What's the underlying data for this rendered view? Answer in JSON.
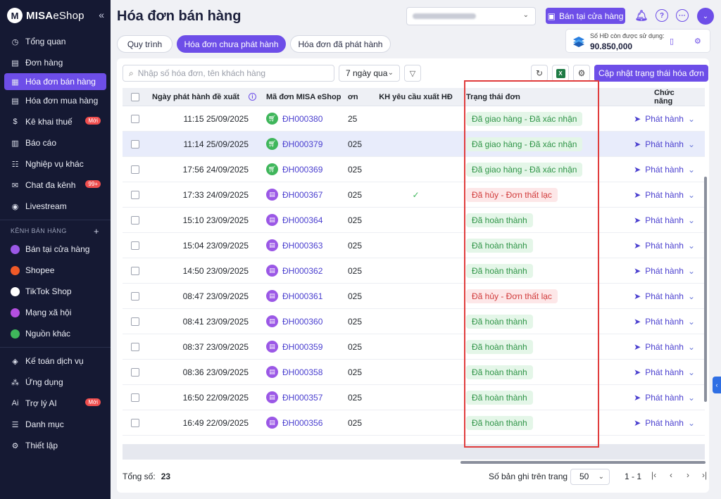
{
  "brand": {
    "logo_letter": "M",
    "name_bold": "MISA",
    "name_light": "eShop"
  },
  "sidebar": {
    "items": [
      {
        "label": "Tổng quan",
        "icon": "gauge-icon",
        "glyph": "◷"
      },
      {
        "label": "Đơn hàng",
        "icon": "order-icon",
        "glyph": "▤"
      },
      {
        "label": "Hóa đơn bán hàng",
        "icon": "invoice-icon",
        "glyph": "▦"
      },
      {
        "label": "Hóa đơn mua hàng",
        "icon": "receipt-icon",
        "glyph": "▤"
      },
      {
        "label": "Kê khai thuế",
        "icon": "tax-icon",
        "glyph": "$",
        "badge": "Mới"
      },
      {
        "label": "Báo cáo",
        "icon": "chart-icon",
        "glyph": "▥"
      },
      {
        "label": "Nghiệp vụ khác",
        "icon": "grid-icon",
        "glyph": "☷"
      },
      {
        "label": "Chat đa kênh",
        "icon": "chat-icon",
        "glyph": "✉",
        "badge": "99+"
      },
      {
        "label": "Livestream",
        "icon": "broadcast-icon",
        "glyph": "◉"
      }
    ],
    "section_title": "KÊNH BÁN HÀNG",
    "channels": [
      {
        "label": "Bán tại cửa hàng",
        "color": "#9b58e6"
      },
      {
        "label": "Shopee",
        "color": "#f05a28"
      },
      {
        "label": "TikTok Shop",
        "color": "#ffffff"
      },
      {
        "label": "Mạng xã hội",
        "color": "#b44fe0"
      },
      {
        "label": "Nguồn khác",
        "color": "#3fb65b"
      }
    ],
    "bottom": [
      {
        "label": "Kế toán dịch vụ",
        "icon": "accounting-icon",
        "glyph": "◈"
      },
      {
        "label": "Ứng dụng",
        "icon": "apps-icon",
        "glyph": "⁂"
      },
      {
        "label": "Trợ lý AI",
        "icon": "ai-icon",
        "glyph": "Ai",
        "badge": "Mới"
      },
      {
        "label": "Danh mục",
        "icon": "list-icon",
        "glyph": "☰"
      },
      {
        "label": "Thiết lập",
        "icon": "settings-icon",
        "glyph": "⚙"
      }
    ]
  },
  "header": {
    "title": "Hóa đơn bán hàng",
    "store_button": "Bán tại cửa hàng",
    "tabs": [
      "Quy trình",
      "Hóa đơn chưa phát hành",
      "Hóa đơn đã phát hành"
    ],
    "quota_label": "Số HĐ còn được sử dụng:",
    "quota_value": "90.850,000"
  },
  "toolbar": {
    "search_placeholder": "Nhập số hóa đơn, tên khách hàng",
    "period": "7 ngày qua",
    "update_button": "Cập nhật trạng thái hóa đơn",
    "excel_letter": "X"
  },
  "table": {
    "columns": {
      "date": "Ngày phát hành đề xuất",
      "code": "Mã đơn MISA eShop",
      "n": "ơn",
      "kh": "KH yêu cầu xuất HĐ",
      "status": "Trạng thái đơn",
      "func": "Chức năng"
    },
    "action_label": "Phát hành",
    "rows": [
      {
        "date": "11:15 25/09/2025",
        "code": "ĐH000380",
        "icon": "green",
        "n": "25",
        "kh": "",
        "status": "Đã giao hàng - Đã xác nhận",
        "tone": "green"
      },
      {
        "date": "11:14 25/09/2025",
        "code": "ĐH000379",
        "icon": "green",
        "n": "025",
        "kh": "",
        "status": "Đã giao hàng - Đã xác nhận",
        "tone": "green",
        "selected": true
      },
      {
        "date": "17:56 24/09/2025",
        "code": "ĐH000369",
        "icon": "green",
        "n": "025",
        "kh": "",
        "status": "Đã giao hàng - Đã xác nhận",
        "tone": "green"
      },
      {
        "date": "17:33 24/09/2025",
        "code": "ĐH000367",
        "icon": "purple",
        "n": "025",
        "kh": "✓",
        "status": "Đã hủy - Đơn thất lạc",
        "tone": "red"
      },
      {
        "date": "15:10 23/09/2025",
        "code": "ĐH000364",
        "icon": "purple",
        "n": "025",
        "kh": "",
        "status": "Đã hoàn thành",
        "tone": "green"
      },
      {
        "date": "15:04 23/09/2025",
        "code": "ĐH000363",
        "icon": "purple",
        "n": "025",
        "kh": "",
        "status": "Đã hoàn thành",
        "tone": "green"
      },
      {
        "date": "14:50 23/09/2025",
        "code": "ĐH000362",
        "icon": "purple",
        "n": "025",
        "kh": "",
        "status": "Đã hoàn thành",
        "tone": "green"
      },
      {
        "date": "08:47 23/09/2025",
        "code": "ĐH000361",
        "icon": "purple",
        "n": "025",
        "kh": "",
        "status": "Đã hủy - Đơn thất lạc",
        "tone": "red"
      },
      {
        "date": "08:41 23/09/2025",
        "code": "ĐH000360",
        "icon": "purple",
        "n": "025",
        "kh": "",
        "status": "Đã hoàn thành",
        "tone": "green"
      },
      {
        "date": "08:37 23/09/2025",
        "code": "ĐH000359",
        "icon": "purple",
        "n": "025",
        "kh": "",
        "status": "Đã hoàn thành",
        "tone": "green"
      },
      {
        "date": "08:36 23/09/2025",
        "code": "ĐH000358",
        "icon": "purple",
        "n": "025",
        "kh": "",
        "status": "Đã hoàn thành",
        "tone": "green"
      },
      {
        "date": "16:50 22/09/2025",
        "code": "ĐH000357",
        "icon": "purple",
        "n": "025",
        "kh": "",
        "status": "Đã hoàn thành",
        "tone": "green"
      },
      {
        "date": "16:49 22/09/2025",
        "code": "ĐH000356",
        "icon": "purple",
        "n": "025",
        "kh": "",
        "status": "Đã hoàn thành",
        "tone": "green"
      }
    ]
  },
  "footer": {
    "total_label": "Tổng số:",
    "total_value": "23",
    "per_page_label": "Số bản ghi trên trang",
    "per_page": "50",
    "range": "1 - 1"
  }
}
